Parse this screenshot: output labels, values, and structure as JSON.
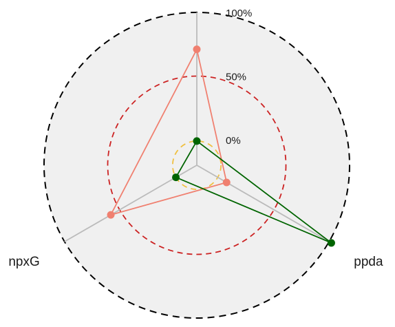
{
  "chart_data": {
    "type": "radar",
    "axes": [
      {
        "label": ""
      },
      {
        "label": "ppda"
      },
      {
        "label": "npxG"
      }
    ],
    "ticks": [
      "0%",
      "50%",
      "100%"
    ],
    "range": [
      -20,
      100
    ],
    "series": [
      {
        "values": [
          71,
          7,
          58
        ],
        "color": "#f08070"
      },
      {
        "values": [
          -1,
          102,
          -1
        ],
        "color": "#006400"
      }
    ],
    "rings": [
      {
        "value": -1,
        "color": "#f0c040",
        "style": "dashed"
      },
      {
        "value": 50,
        "color": "#cc2222",
        "style": "dashed"
      },
      {
        "value": 100,
        "color": "#000000",
        "style": "dashed"
      }
    ],
    "background": "#f0f0f0",
    "spoke_color": "#bbbbbb",
    "grid": false,
    "legend": "none"
  }
}
